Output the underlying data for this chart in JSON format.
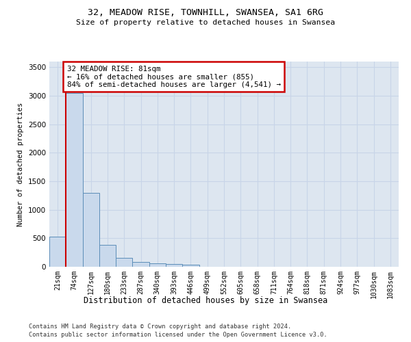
{
  "title_line1": "32, MEADOW RISE, TOWNHILL, SWANSEA, SA1 6RG",
  "title_line2": "Size of property relative to detached houses in Swansea",
  "xlabel": "Distribution of detached houses by size in Swansea",
  "ylabel": "Number of detached properties",
  "footnote_line1": "Contains HM Land Registry data © Crown copyright and database right 2024.",
  "footnote_line2": "Contains public sector information licensed under the Open Government Licence v3.0.",
  "bin_labels": [
    "21sqm",
    "74sqm",
    "127sqm",
    "180sqm",
    "233sqm",
    "287sqm",
    "340sqm",
    "393sqm",
    "446sqm",
    "499sqm",
    "552sqm",
    "605sqm",
    "658sqm",
    "711sqm",
    "764sqm",
    "818sqm",
    "871sqm",
    "924sqm",
    "977sqm",
    "1030sqm",
    "1083sqm"
  ],
  "bar_values": [
    530,
    3050,
    1300,
    390,
    155,
    85,
    60,
    45,
    38,
    0,
    0,
    0,
    0,
    0,
    0,
    0,
    0,
    0,
    0,
    0,
    0
  ],
  "bar_color": "#c9d9ec",
  "bar_edge_color": "#5b8db8",
  "red_line_x": 0.5,
  "annotation_title": "32 MEADOW RISE: 81sqm",
  "annotation_line1": "← 16% of detached houses are smaller (855)",
  "annotation_line2": "84% of semi-detached houses are larger (4,541) →",
  "annotation_box_color": "#ffffff",
  "annotation_box_edge": "#cc0000",
  "red_line_color": "#cc0000",
  "ylim": [
    0,
    3600
  ],
  "yticks": [
    0,
    500,
    1000,
    1500,
    2000,
    2500,
    3000,
    3500
  ],
  "grid_color": "#c8d4e8",
  "background_color": "#dde6f0"
}
